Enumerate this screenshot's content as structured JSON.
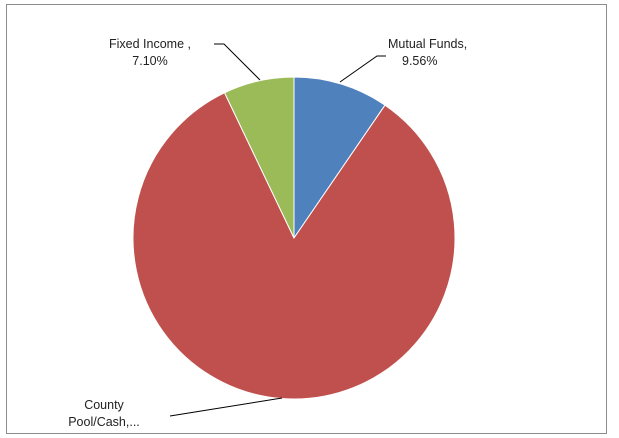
{
  "chart_data": {
    "type": "pie",
    "categories": [
      "Mutual Funds",
      "County Pool/Cash",
      "Fixed Income"
    ],
    "values": [
      9.56,
      83.34,
      7.1
    ],
    "colors": [
      "#4f81bd",
      "#c0504d",
      "#9bbb59"
    ],
    "data_labels": [
      {
        "line1": "Mutual Funds,",
        "line2": "9.56%"
      },
      {
        "line1": "County",
        "line2": "Pool/Cash,..."
      },
      {
        "line1": "Fixed Income ,",
        "line2": "7.10%"
      }
    ],
    "start_angle": "12 o'clock",
    "direction": "clockwise",
    "legend": "none",
    "title": ""
  }
}
